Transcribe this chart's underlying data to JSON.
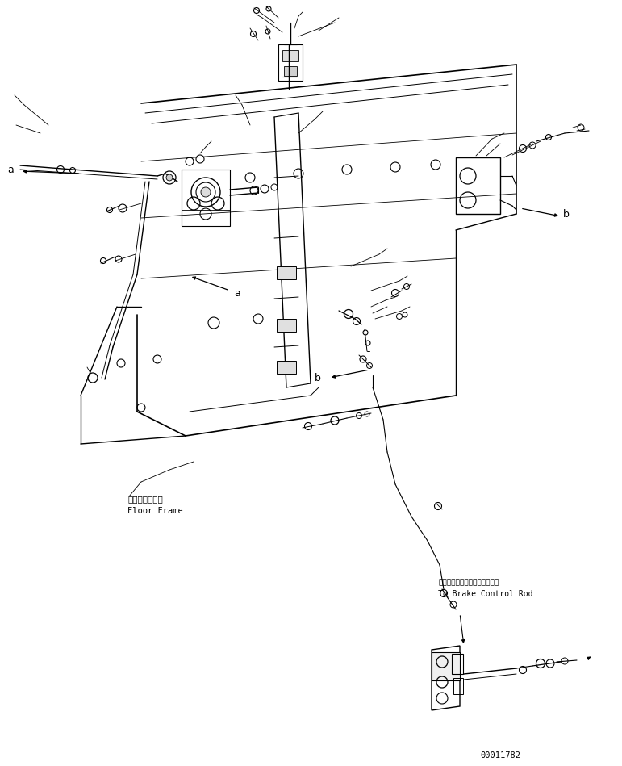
{
  "background_color": "#ffffff",
  "line_color": "#000000",
  "part_number": "00011782",
  "annotation_floor_frame_jp": "フロアフレーム",
  "annotation_floor_frame_en": "Floor Frame",
  "annotation_brake_jp": "ブレーキコントロールロッドヘ",
  "annotation_brake_en": "To Brake Control Rod",
  "fig_width": 7.71,
  "fig_height": 9.49,
  "dpi": 100
}
